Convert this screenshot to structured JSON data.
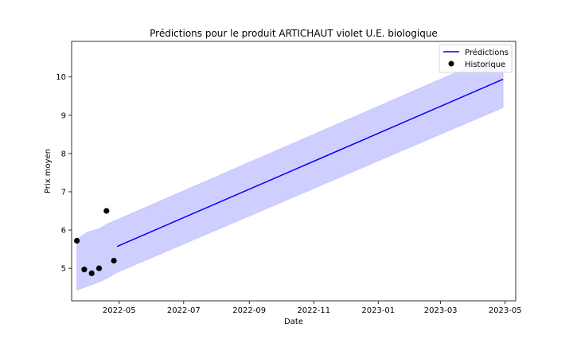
{
  "chart_data": {
    "type": "line",
    "title": "Prédictions pour le produit ARTICHAUT violet U.E. biologique",
    "xlabel": "Date",
    "ylabel": "Prix moyen",
    "xlim": [
      "2022-03-17",
      "2023-05-11"
    ],
    "ylim": [
      4.15,
      10.93
    ],
    "grid": false,
    "legend_position": "top-right",
    "x_ticks": [
      {
        "date": "2022-05-01",
        "label": "2022-05"
      },
      {
        "date": "2022-07-01",
        "label": "2022-07"
      },
      {
        "date": "2022-09-01",
        "label": "2022-09"
      },
      {
        "date": "2022-11-01",
        "label": "2022-11"
      },
      {
        "date": "2023-01-01",
        "label": "2023-01"
      },
      {
        "date": "2023-03-01",
        "label": "2023-03"
      },
      {
        "date": "2023-05-01",
        "label": "2023-05"
      }
    ],
    "y_ticks": [
      5,
      6,
      7,
      8,
      9,
      10
    ],
    "series": [
      {
        "name": "Prédictions",
        "kind": "line",
        "color": "#0000ff",
        "points": [
          [
            "2022-04-29",
            5.57
          ],
          [
            "2023-04-29",
            9.94
          ]
        ]
      },
      {
        "name": "Historique",
        "kind": "scatter",
        "color": "#000000",
        "points": [
          [
            "2022-03-22",
            5.72
          ],
          [
            "2022-03-29",
            4.97
          ],
          [
            "2022-04-05",
            4.87
          ],
          [
            "2022-04-12",
            5.0
          ],
          [
            "2022-04-19",
            6.5
          ],
          [
            "2022-04-26",
            5.2
          ]
        ]
      }
    ],
    "confidence_band": {
      "color": "#ccccff",
      "upper": [
        [
          "2022-03-22",
          5.76
        ],
        [
          "2022-04-01",
          5.95
        ],
        [
          "2022-04-12",
          6.03
        ],
        [
          "2022-04-19",
          6.15
        ],
        [
          "2022-04-29",
          6.27
        ],
        [
          "2023-04-29",
          10.65
        ]
      ],
      "lower": [
        [
          "2022-03-22",
          4.43
        ],
        [
          "2022-04-05",
          4.57
        ],
        [
          "2022-04-15",
          4.68
        ],
        [
          "2022-04-22",
          4.78
        ],
        [
          "2022-04-29",
          4.89
        ],
        [
          "2023-04-29",
          9.2
        ]
      ]
    }
  }
}
